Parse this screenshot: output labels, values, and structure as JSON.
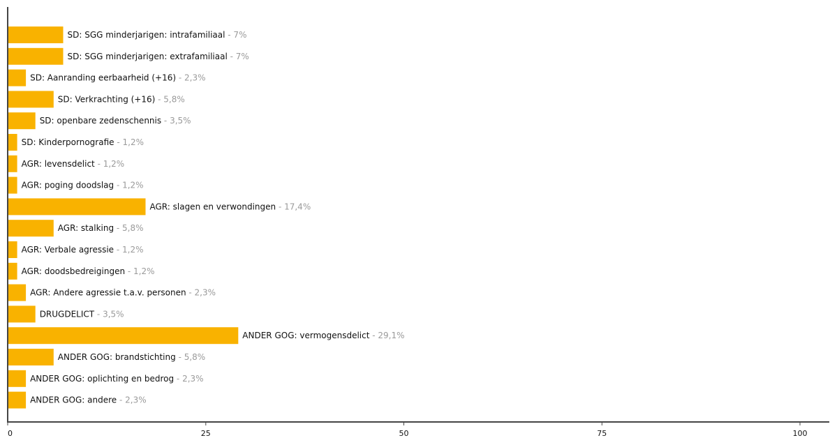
{
  "colors": {
    "bar": "#f9b200",
    "axis": "#444444",
    "label_text": "#111111",
    "value_text": "#9a9a9a"
  },
  "chart_data": {
    "type": "bar",
    "orientation": "horizontal",
    "title": "",
    "xlabel": "",
    "ylabel": "",
    "xlim": [
      0,
      100
    ],
    "grid": false,
    "value_separator": " - ",
    "value_suffix": "%",
    "decimal_separator": ",",
    "x_ticks": [
      0,
      25,
      50,
      75,
      100
    ],
    "categories": [
      "SD: SGG minderjarigen: intrafamiliaal",
      "SD: SGG minderjarigen: extrafamiliaal",
      "SD: Aanranding eerbaarheid (+16)",
      "SD: Verkrachting (+16)",
      "SD: openbare zedenschennis",
      "SD: Kinderpornografie",
      "AGR: levensdelict",
      "AGR: poging doodslag",
      "AGR: slagen en verwondingen",
      "AGR: stalking",
      "AGR: Verbale agressie",
      "AGR: doodsbedreigingen",
      "AGR: Andere agressie t.a.v. personen",
      "DRUGDELICT",
      "ANDER GOG: vermogensdelict",
      "ANDER GOG: brandstichting",
      "ANDER GOG: oplichting en bedrog",
      "ANDER GOG: andere"
    ],
    "values": [
      7,
      7,
      2.3,
      5.8,
      3.5,
      1.2,
      1.2,
      1.2,
      17.4,
      5.8,
      1.2,
      1.2,
      2.3,
      3.5,
      29.1,
      5.8,
      2.3,
      2.3
    ]
  }
}
